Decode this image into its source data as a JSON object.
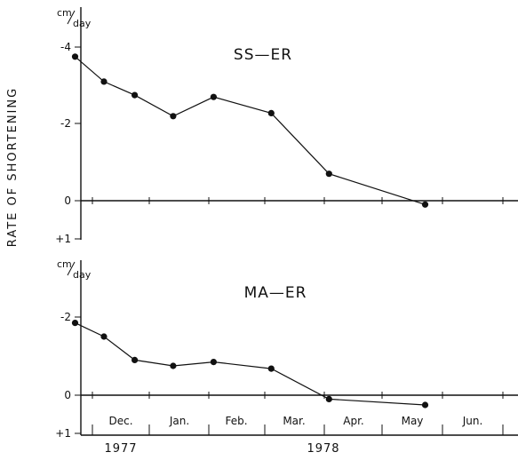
{
  "chart_data": [
    {
      "type": "line",
      "title": "SS—ER",
      "unit": "cm/day",
      "y_tick_labels": [
        "-4",
        "-2",
        "0",
        "+1"
      ],
      "ylim": [
        -4.4,
        1.0
      ],
      "x": [
        "1977-11-22",
        "1977-12-07",
        "1977-12-23",
        "1978-01-12",
        "1978-02-02",
        "1978-03-04",
        "1978-04-03",
        "1978-05-23"
      ],
      "values": [
        -3.75,
        -3.1,
        -2.75,
        -2.2,
        -2.7,
        -2.28,
        -0.7,
        0.1
      ]
    },
    {
      "type": "line",
      "title": "MA—ER",
      "unit": "cm/day",
      "y_tick_labels": [
        "-2",
        "0",
        "+1"
      ],
      "ylim": [
        -2.4,
        1.0
      ],
      "x": [
        "1977-11-22",
        "1977-12-07",
        "1977-12-23",
        "1978-01-12",
        "1978-02-02",
        "1978-03-04",
        "1978-04-03",
        "1978-05-23"
      ],
      "values": [
        -1.85,
        -1.5,
        -0.9,
        -0.75,
        -0.85,
        -0.68,
        0.1,
        0.25
      ]
    }
  ],
  "ylabel": "RATE OF SHORTENING",
  "month_labels": [
    "Dec.",
    "Jan.",
    "Feb.",
    "Mar.",
    "Apr.",
    "May",
    "Jun."
  ],
  "year_labels": [
    "1977",
    "1978"
  ],
  "colors": {
    "ink": "#111111"
  }
}
